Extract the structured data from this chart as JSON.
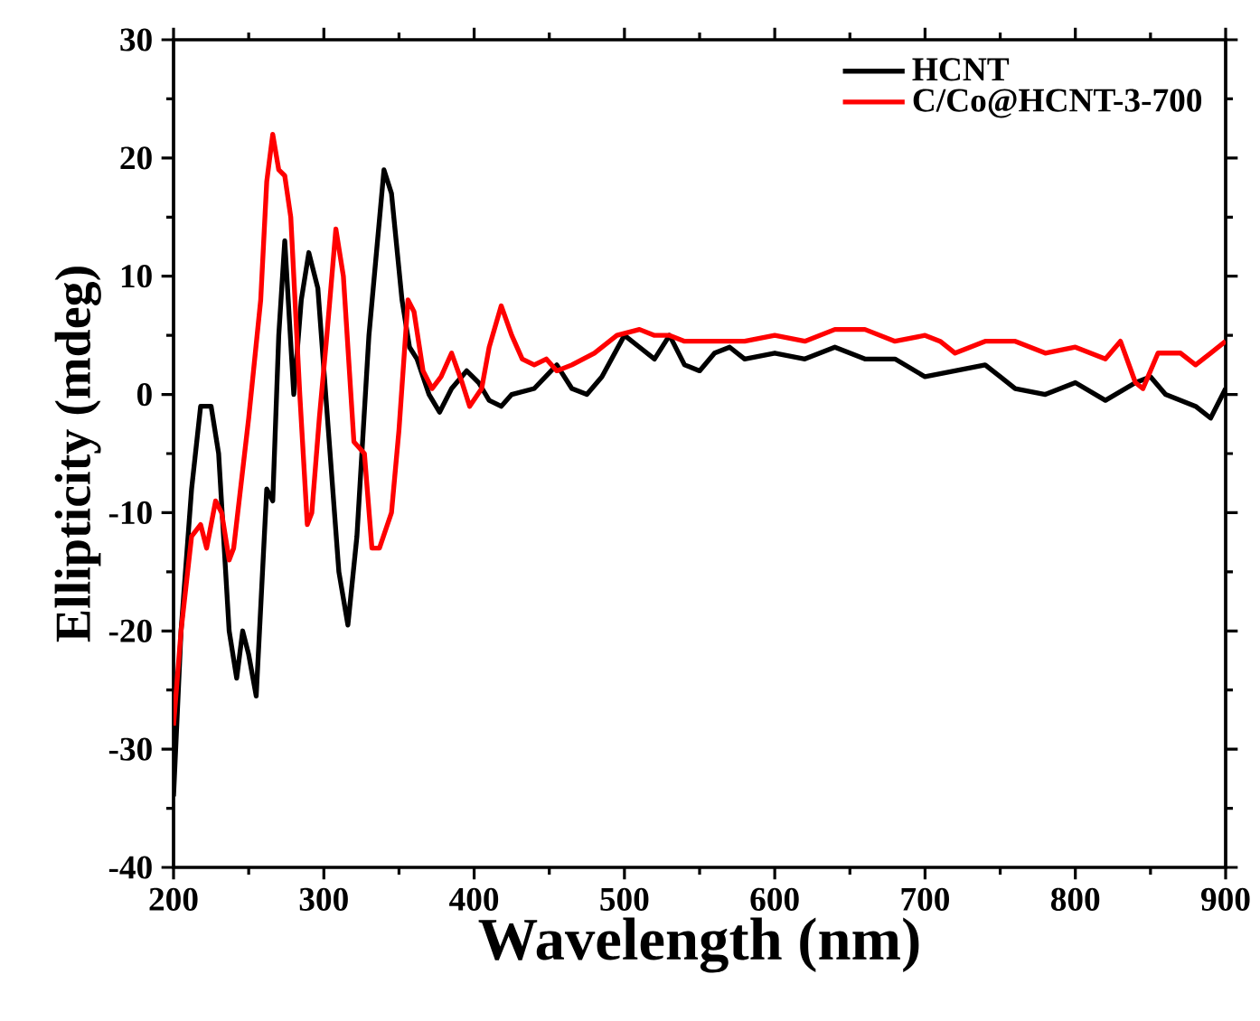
{
  "chart_data": {
    "type": "line",
    "xlabel": "Wavelength (nm)",
    "ylabel": "Ellipticity (mdeg)",
    "xlim": [
      200,
      900
    ],
    "ylim": [
      -40,
      30
    ],
    "xticks": [
      200,
      300,
      400,
      500,
      600,
      700,
      800,
      900
    ],
    "yticks": [
      -40,
      -30,
      -20,
      -10,
      0,
      10,
      20,
      30
    ],
    "legend": "top right",
    "grid": false,
    "marker": "none",
    "line_style": "solid",
    "series": [
      {
        "name": "HCNT",
        "color": "#000000",
        "x": [
          200,
          205,
          212,
          218,
          225,
          230,
          237,
          242,
          246,
          250,
          255,
          262,
          266,
          270,
          274,
          280,
          285,
          290,
          296,
          303,
          310,
          316,
          322,
          330,
          340,
          345,
          352,
          357,
          362,
          370,
          377,
          385,
          395,
          403,
          410,
          418,
          425,
          440,
          455,
          465,
          475,
          485,
          500,
          510,
          520,
          530,
          540,
          550,
          560,
          570,
          580,
          600,
          620,
          640,
          660,
          680,
          700,
          720,
          740,
          750,
          760,
          780,
          800,
          820,
          840,
          850,
          860,
          880,
          890,
          900
        ],
        "values": [
          -34,
          -20,
          -8,
          -1,
          -1,
          -5,
          -20,
          -24,
          -20,
          -22,
          -25.5,
          -8,
          -9,
          5,
          13,
          0,
          8,
          12,
          9,
          -3,
          -15,
          -19.5,
          -12,
          5,
          19,
          17,
          8,
          4,
          3,
          0,
          -1.5,
          0.5,
          2,
          1,
          -0.5,
          -1,
          0,
          0.5,
          2.5,
          0.5,
          0,
          1.5,
          5,
          4,
          3,
          5,
          2.5,
          2,
          3.5,
          4,
          3,
          3.5,
          3,
          4,
          3,
          3,
          1.5,
          2,
          2.5,
          1.5,
          0.5,
          0,
          1,
          -0.5,
          1,
          1.5,
          0,
          -1,
          -2,
          0.5
        ]
      },
      {
        "name": "C/Co@HCNT-3-700",
        "color": "#ff0000",
        "x": [
          200,
          205,
          212,
          218,
          222,
          228,
          232,
          237,
          240,
          250,
          258,
          262,
          266,
          270,
          274,
          278,
          284,
          289,
          292,
          297,
          302,
          308,
          313,
          320,
          327,
          332,
          337,
          345,
          350,
          356,
          360,
          366,
          372,
          378,
          385,
          392,
          397,
          405,
          410,
          418,
          425,
          432,
          440,
          448,
          455,
          465,
          480,
          495,
          510,
          520,
          530,
          540,
          560,
          580,
          600,
          620,
          640,
          660,
          680,
          700,
          710,
          720,
          740,
          760,
          780,
          800,
          820,
          830,
          840,
          845,
          855,
          870,
          880,
          890,
          900
        ],
        "values": [
          -28,
          -20,
          -12,
          -11,
          -13,
          -9,
          -10,
          -14,
          -13,
          -2,
          8,
          18,
          22,
          19,
          18.5,
          15,
          0,
          -11,
          -10,
          -2,
          5,
          14,
          10,
          -4,
          -5,
          -13,
          -13,
          -10,
          -3,
          8,
          7,
          2,
          0.5,
          1.5,
          3.5,
          1,
          -1,
          0.5,
          4,
          7.5,
          5,
          3,
          2.5,
          3,
          2,
          2.5,
          3.5,
          5,
          5.5,
          5,
          5,
          4.5,
          4.5,
          4.5,
          5,
          4.5,
          5.5,
          5.5,
          4.5,
          5,
          4.5,
          3.5,
          4.5,
          4.5,
          3.5,
          4,
          3,
          4.5,
          1,
          0.5,
          3.5,
          3.5,
          2.5,
          3.5,
          4.5
        ]
      }
    ]
  }
}
